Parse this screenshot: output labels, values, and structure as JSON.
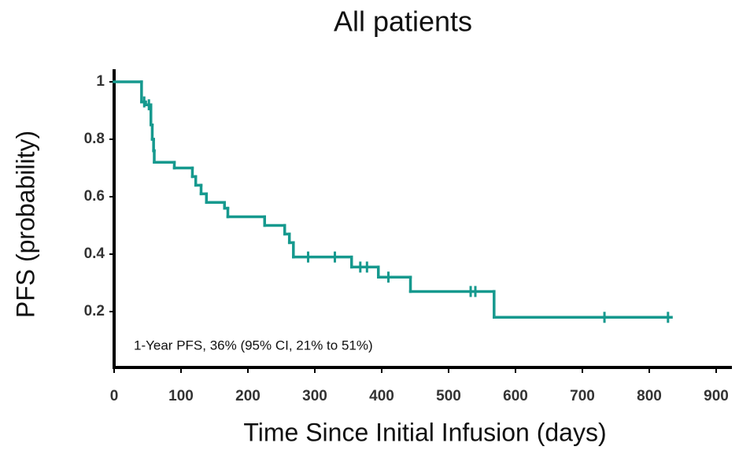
{
  "chart_data": {
    "type": "step",
    "title": "All patients",
    "x_label": "Time Since Initial Infusion (days)",
    "y_label": "PFS (probability)",
    "annotation": "1-Year PFS, 36% (95% CI, 21% to 51%)",
    "color": "#16998e",
    "x": [
      0,
      41,
      47,
      55,
      57,
      59,
      60,
      90,
      117,
      122,
      130,
      138,
      165,
      170,
      225,
      255,
      262,
      268,
      355,
      395,
      443,
      568,
      833
    ],
    "values": [
      1,
      0.93,
      0.92,
      0.85,
      0.8,
      0.76,
      0.72,
      0.7,
      0.67,
      0.64,
      0.61,
      0.58,
      0.56,
      0.53,
      0.5,
      0.47,
      0.44,
      0.39,
      0.355,
      0.32,
      0.27,
      0.18,
      0.18
    ],
    "censor": {
      "x": [
        45,
        52,
        290,
        330,
        368,
        378,
        410,
        533,
        540,
        733,
        828
      ],
      "values": [
        0.93,
        0.92,
        0.39,
        0.39,
        0.355,
        0.355,
        0.32,
        0.27,
        0.27,
        0.18,
        0.18
      ]
    },
    "xlim": [
      0,
      920
    ],
    "ylim": [
      0,
      1.05
    ],
    "xticks": [
      0,
      100,
      200,
      300,
      400,
      500,
      600,
      700,
      800,
      900
    ],
    "yticks": [
      0.2,
      0.4,
      0.6,
      0.8,
      1
    ]
  }
}
